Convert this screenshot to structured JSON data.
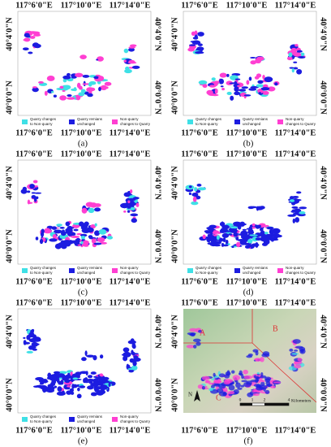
{
  "lon_labels": [
    "117°6'0\"E",
    "117°10'0\"E",
    "117°14'0\"E"
  ],
  "lat_labels": [
    "40°4'0\"N",
    "40°0'0\"N"
  ],
  "legend": [
    {
      "lines": [
        "Quarry changes",
        "to Non-quarry"
      ]
    },
    {
      "lines": [
        "Quarry remians",
        "unchanged"
      ]
    },
    {
      "lines": [
        "Non-quarry",
        "changes to Quarry"
      ]
    }
  ],
  "panels": [
    {
      "caption": "(a)"
    },
    {
      "caption": "(b)"
    },
    {
      "caption": "(c)"
    },
    {
      "caption": "(d)"
    },
    {
      "caption": "(e)"
    },
    {
      "caption": "(f)"
    }
  ],
  "panel_f": {
    "regions": [
      "A",
      "B",
      "C"
    ],
    "north": "N",
    "scale": {
      "ticks": [
        0,
        1,
        2,
        4
      ],
      "unit": "Kilometers"
    }
  }
}
